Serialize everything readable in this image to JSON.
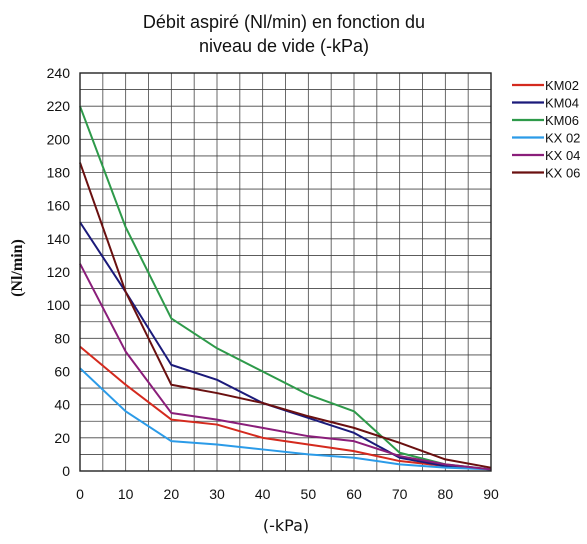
{
  "chart_data": {
    "type": "line",
    "title_line1": "Débit aspiré (Nl/min) en fonction du",
    "title_line2": "niveau de vide (-kPa)",
    "xlabel": "(-kPa)",
    "ylabel": "(Nl/min)",
    "x": [
      0,
      10,
      20,
      30,
      40,
      50,
      60,
      70,
      80,
      90
    ],
    "xlim": [
      0,
      90
    ],
    "ylim": [
      0,
      240
    ],
    "xticks": [
      "0",
      "10",
      "20",
      "30",
      "40",
      "50",
      "60",
      "70",
      "80",
      "90"
    ],
    "yticks": [
      "0",
      "20",
      "40",
      "60",
      "80",
      "100",
      "120",
      "140",
      "160",
      "180",
      "200",
      "220",
      "240"
    ],
    "grid": true,
    "legend_position": "right",
    "series": [
      {
        "name": "KM02",
        "color": "#d42a1e",
        "values": [
          75,
          52,
          31,
          28,
          20,
          16,
          12,
          6,
          3,
          1
        ]
      },
      {
        "name": "KM04",
        "color": "#1b1a7a",
        "values": [
          150,
          108,
          64,
          55,
          41,
          32,
          23,
          8,
          3,
          1
        ]
      },
      {
        "name": "KM06",
        "color": "#2e9a4a",
        "values": [
          220,
          147,
          92,
          74,
          60,
          46,
          36,
          11,
          4,
          1
        ]
      },
      {
        "name": "KX 02",
        "color": "#2b9be8",
        "values": [
          62,
          36,
          18,
          16,
          13,
          10,
          8,
          4,
          2,
          1
        ]
      },
      {
        "name": "KX 04",
        "color": "#8a1e7a",
        "values": [
          125,
          72,
          35,
          31,
          26,
          21,
          18,
          9,
          4,
          1
        ]
      },
      {
        "name": "KX 06",
        "color": "#6a1010",
        "values": [
          186,
          108,
          52,
          47,
          41,
          33,
          26,
          17,
          7,
          2
        ]
      }
    ]
  }
}
